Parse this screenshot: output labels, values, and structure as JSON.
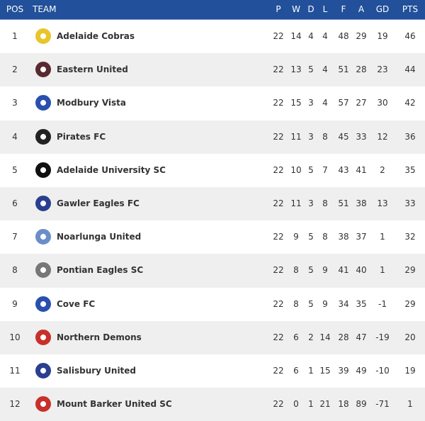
{
  "headers": {
    "pos": "POS",
    "team": "TEAM",
    "p": "P",
    "w": "W",
    "d": "D",
    "l": "L",
    "f": "F",
    "a": "A",
    "gd": "GD",
    "pts": "PTS"
  },
  "colors": {
    "header": "#22509a",
    "alt_row": "#efefef"
  },
  "rows": [
    {
      "pos": "1",
      "team": "Adelaide Cobras",
      "p": "22",
      "w": "14",
      "d": "4",
      "l": "4",
      "f": "48",
      "a": "29",
      "gd": "19",
      "pts": "46",
      "logo": "#e8c62a"
    },
    {
      "pos": "2",
      "team": "Eastern United",
      "p": "22",
      "w": "13",
      "d": "5",
      "l": "4",
      "f": "51",
      "a": "28",
      "gd": "23",
      "pts": "44",
      "logo": "#5a2a30"
    },
    {
      "pos": "3",
      "team": "Modbury Vista",
      "p": "22",
      "w": "15",
      "d": "3",
      "l": "4",
      "f": "57",
      "a": "27",
      "gd": "30",
      "pts": "42",
      "logo": "#2a4fb0"
    },
    {
      "pos": "4",
      "team": "Pirates FC",
      "p": "22",
      "w": "11",
      "d": "3",
      "l": "8",
      "f": "45",
      "a": "33",
      "gd": "12",
      "pts": "36",
      "logo": "#222222"
    },
    {
      "pos": "5",
      "team": "Adelaide University SC",
      "p": "22",
      "w": "10",
      "d": "5",
      "l": "7",
      "f": "43",
      "a": "41",
      "gd": "2",
      "pts": "35",
      "logo": "#111111"
    },
    {
      "pos": "6",
      "team": "Gawler Eagles FC",
      "p": "22",
      "w": "11",
      "d": "3",
      "l": "8",
      "f": "51",
      "a": "38",
      "gd": "13",
      "pts": "33",
      "logo": "#2a3f8f"
    },
    {
      "pos": "7",
      "team": "Noarlunga United",
      "p": "22",
      "w": "9",
      "d": "5",
      "l": "8",
      "f": "38",
      "a": "37",
      "gd": "1",
      "pts": "32",
      "logo": "#6a8fc8"
    },
    {
      "pos": "8",
      "team": "Pontian Eagles SC",
      "p": "22",
      "w": "8",
      "d": "5",
      "l": "9",
      "f": "41",
      "a": "40",
      "gd": "1",
      "pts": "29",
      "logo": "#777777"
    },
    {
      "pos": "9",
      "team": "Cove FC",
      "p": "22",
      "w": "8",
      "d": "5",
      "l": "9",
      "f": "34",
      "a": "35",
      "gd": "-1",
      "pts": "29",
      "logo": "#2a4fb0"
    },
    {
      "pos": "10",
      "team": "Northern Demons",
      "p": "22",
      "w": "6",
      "d": "2",
      "l": "14",
      "f": "28",
      "a": "47",
      "gd": "-19",
      "pts": "20",
      "logo": "#c8302a"
    },
    {
      "pos": "11",
      "team": "Salisbury United",
      "p": "22",
      "w": "6",
      "d": "1",
      "l": "15",
      "f": "39",
      "a": "49",
      "gd": "-10",
      "pts": "19",
      "logo": "#2a3f8f"
    },
    {
      "pos": "12",
      "team": "Mount Barker United SC",
      "p": "22",
      "w": "0",
      "d": "1",
      "l": "21",
      "f": "18",
      "a": "89",
      "gd": "-71",
      "pts": "1",
      "logo": "#c8302a"
    }
  ]
}
